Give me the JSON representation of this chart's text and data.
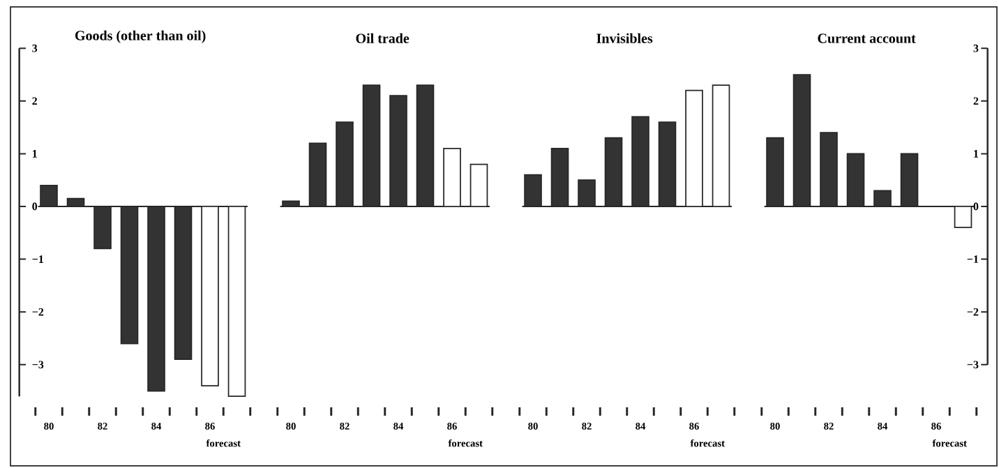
{
  "chart_data": [
    {
      "type": "bar",
      "title": "Goods (other than oil)",
      "categories": [
        "80",
        null,
        "82",
        null,
        "84",
        null,
        "86",
        null
      ],
      "values": [
        0.4,
        0.15,
        -0.8,
        -2.6,
        -3.5,
        -2.9,
        -3.4,
        -3.6
      ],
      "colors": [
        "#333333",
        "#333333",
        "#333333",
        "#333333",
        "#333333",
        "#333333",
        "#ffffff",
        "#ffffff"
      ],
      "ylim": [
        -3.6,
        3
      ],
      "yticks": [
        {
          "value": -3,
          "label": "−3"
        },
        {
          "value": -2,
          "label": "−2"
        },
        {
          "value": -1,
          "label": "−1"
        },
        0,
        1,
        2,
        3
      ],
      "annotations": [
        "forecast"
      ]
    },
    {
      "type": "bar",
      "title": "Oil trade",
      "categories": [
        "80",
        null,
        "82",
        null,
        "84",
        null,
        "86",
        null
      ],
      "values": [
        0.1,
        1.2,
        1.6,
        2.3,
        2.1,
        2.3,
        1.1,
        0.8
      ],
      "colors": [
        "#333333",
        "#333333",
        "#333333",
        "#333333",
        "#333333",
        "#333333",
        "#ffffff",
        "#ffffff"
      ],
      "ylim": [
        -3,
        3
      ],
      "tick_labels": "x",
      "annotations": [
        "forecast"
      ]
    },
    {
      "type": "bar",
      "title": "Invisibles",
      "categories": [
        "80",
        null,
        "82",
        null,
        "84",
        null,
        "86",
        null
      ],
      "values": [
        0.6,
        1.1,
        0.5,
        1.3,
        1.7,
        1.6,
        2.2,
        2.3
      ],
      "colors": [
        "#333333",
        "#333333",
        "#333333",
        "#333333",
        "#333333",
        "#333333",
        "#ffffff",
        "#ffffff"
      ],
      "ylim": [
        -3,
        3
      ],
      "tick_labels": "x",
      "annotations": [
        "forecast"
      ]
    },
    {
      "type": "bar",
      "title": "Current account",
      "categories": [
        "80",
        null,
        "82",
        null,
        "84",
        null,
        "86",
        null
      ],
      "values": [
        1.3,
        2.5,
        1.4,
        1.0,
        0.3,
        1.0,
        null,
        -0.4
      ],
      "colors": [
        "#333333",
        "#333333",
        "#333333",
        "#333333",
        "#333333",
        "#333333",
        "#ffffff",
        "#ffffff"
      ],
      "ylim": [
        -3,
        3
      ],
      "yticks": [
        {
          "value": -3,
          "label": "−3"
        },
        {
          "value": -2,
          "label": "−2"
        },
        {
          "value": -1,
          "label": "−1"
        },
        0,
        1,
        2,
        3
      ],
      "annotations": [
        "forecast"
      ]
    }
  ]
}
